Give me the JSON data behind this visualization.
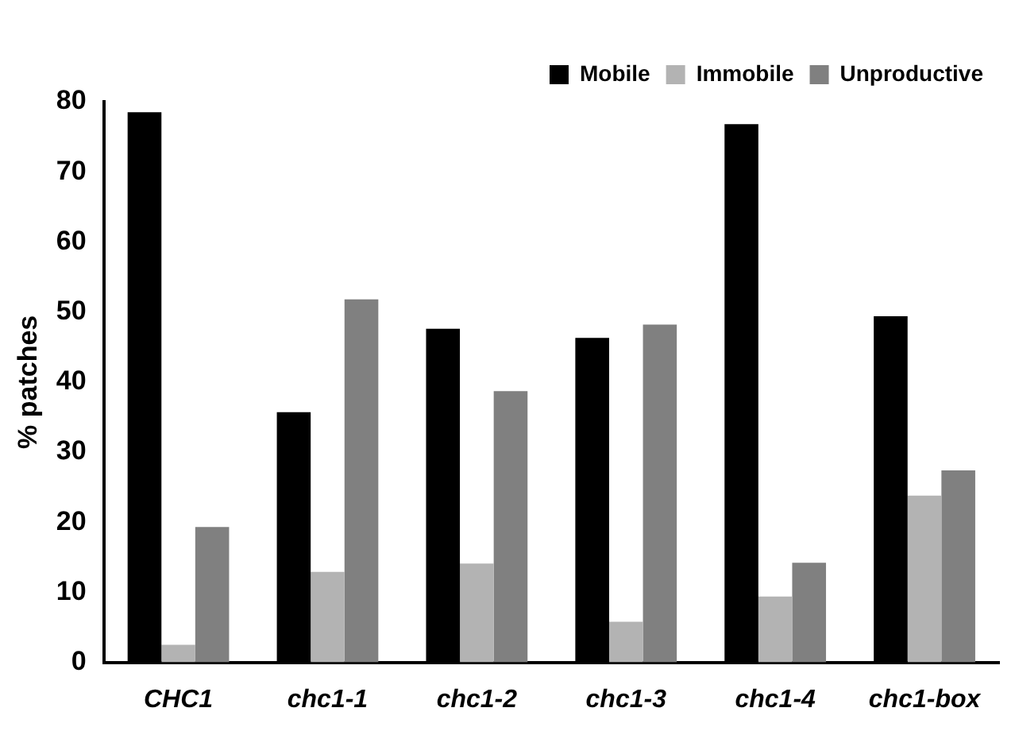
{
  "chart_data": {
    "type": "bar",
    "ylabel": "% patches",
    "categories": [
      "CHC1",
      "chc1-1",
      "chc1-2",
      "chc1-3",
      "chc1-4",
      "chc1-box"
    ],
    "series": [
      {
        "name": "Mobile",
        "color": "#000000",
        "values": [
          78.5,
          35.7,
          47.6,
          46.3,
          76.8,
          49.4
        ]
      },
      {
        "name": "Immobile",
        "color": "#b3b3b3",
        "values": [
          2.5,
          12.9,
          14.1,
          5.8,
          9.4,
          23.8
        ]
      },
      {
        "name": "Unproductive",
        "color": "#808080",
        "values": [
          19.3,
          51.8,
          38.7,
          48.2,
          14.2,
          27.4
        ]
      }
    ],
    "ylim": [
      0,
      80
    ],
    "yticks": [
      0,
      10,
      20,
      30,
      40,
      50,
      60,
      70,
      80
    ],
    "grid": false,
    "legend": "top right"
  }
}
